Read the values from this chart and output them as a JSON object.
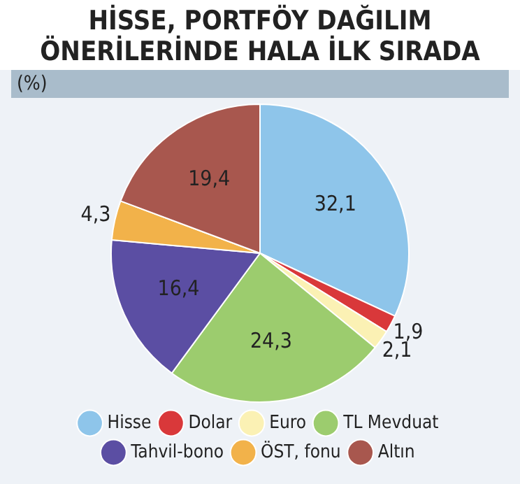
{
  "chart_data": {
    "type": "pie",
    "title": "HİSSE, PORTFÖY DAĞILIM ÖNERİLERİNDE HALA İLK SIRADA",
    "subtitle": "(%)",
    "categories": [
      "Hisse",
      "Dolar",
      "Euro",
      "TL Mevduat",
      "Tahvil-bono",
      "ÖST, fonu",
      "Altın"
    ],
    "values": [
      32.1,
      1.9,
      2.1,
      24.3,
      16.4,
      4.3,
      19.4
    ],
    "value_labels": [
      "32,1",
      "1,9",
      "2,1",
      "24,3",
      "16,4",
      "4,3",
      "19,4"
    ],
    "colors": [
      "#8ec5ea",
      "#d9383a",
      "#fbf1b4",
      "#9ccc6e",
      "#5b4ea3",
      "#f2b24a",
      "#a8574e"
    ],
    "legend": "bottom"
  }
}
